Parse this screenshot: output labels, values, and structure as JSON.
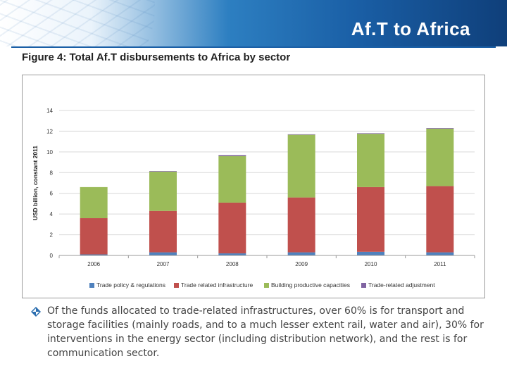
{
  "header": {
    "title": "Af.T to Africa"
  },
  "figure": {
    "title": "Figure 4: Total Af.T disbursements to Africa by sector"
  },
  "chart_data": {
    "type": "bar",
    "stacked": true,
    "categories": [
      "2006",
      "2007",
      "2008",
      "2009",
      "2010",
      "2011"
    ],
    "series": [
      {
        "name": "Trade policy & regulations",
        "color": "#4f81bd",
        "values": [
          0.1,
          0.3,
          0.2,
          0.3,
          0.35,
          0.3
        ]
      },
      {
        "name": "Trade related infrastructure",
        "color": "#c0504d",
        "values": [
          3.5,
          4.0,
          4.9,
          5.3,
          6.25,
          6.4
        ]
      },
      {
        "name": "Building productive capacities",
        "color": "#9bbb59",
        "values": [
          3.0,
          3.8,
          4.5,
          6.05,
          5.15,
          5.55
        ]
      },
      {
        "name": "Trade-related adjustment",
        "color": "#8064a2",
        "values": [
          0.0,
          0.05,
          0.1,
          0.05,
          0.05,
          0.05
        ]
      }
    ],
    "ylabel": "USD billion, constant 2011",
    "xlabel": "",
    "ylim": [
      0,
      14
    ],
    "yticks": [
      "0",
      "2",
      "4",
      "6",
      "8",
      "10",
      "12",
      "14"
    ],
    "grid": true,
    "legend": "bottom"
  },
  "bullet": {
    "icon": "diamond-bullet-icon",
    "text": "Of the funds allocated to trade-related infrastructures, over 60% is for transport and storage facilities (mainly roads, and to a much lesser extent rail, water and air), 30% for interventions in the energy sector (including distribution network), and the rest is for communication sector."
  },
  "colors": {
    "banner": "#1a5fa6",
    "bullet": "#2d6fb0"
  }
}
